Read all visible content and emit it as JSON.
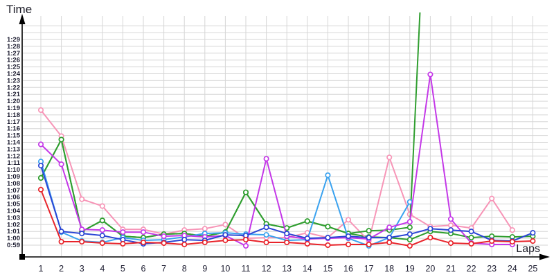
{
  "title": "Time",
  "xlabel": "Laps",
  "chart_data": {
    "type": "line",
    "title": "Time",
    "xlabel": "Laps",
    "ylabel": "Time",
    "x": [
      1,
      2,
      3,
      4,
      5,
      6,
      7,
      8,
      9,
      10,
      11,
      12,
      13,
      14,
      15,
      16,
      17,
      18,
      19,
      20,
      21,
      22,
      23,
      24,
      25
    ],
    "x_tick_labels": [
      "1",
      "2",
      "3",
      "4",
      "5",
      "6",
      "7",
      "8",
      "9",
      "10",
      "11",
      "12",
      "13",
      "14",
      "15",
      "16",
      "17",
      "18",
      "19",
      "20",
      "21",
      "22",
      "23",
      "24",
      "25"
    ],
    "y_unit": "m:ss (values stored as seconds)",
    "y_tick_start_seconds": 59,
    "y_tick_labels": [
      "0:59",
      "1:00",
      "1:01",
      "1:02",
      "1:03",
      "1:04",
      "1:05",
      "1:06",
      "1:07",
      "1:08",
      "1:09",
      "1:10",
      "1:11",
      "1:12",
      "1:13",
      "1:14",
      "1:15",
      "1:16",
      "1:17",
      "1:18",
      "1:19",
      "1:20",
      "1:21",
      "1:22",
      "1:23",
      "1:24",
      "1:25",
      "1:26",
      "1:27",
      "1:28",
      "1:29"
    ],
    "extra_unlabeled_gridline_seconds": [
      90,
      91
    ],
    "ylim_seconds": [
      59,
      89
    ],
    "grid": true,
    "legend": "none",
    "marker": "open-circle",
    "series": [
      {
        "name": "green-flat",
        "color": "#2f9e2f",
        "values": [
          68.8,
          74.4,
          61.0,
          62.6,
          60.3,
          60.1,
          60.6,
          60.7,
          60.3,
          60.9,
          66.7,
          62.1,
          61.5,
          62.5,
          61.7,
          60.7,
          60.2,
          60.1,
          59.8,
          61.0,
          60.7,
          60.1,
          60.3,
          60.2,
          60.3
        ]
      },
      {
        "name": "pink",
        "color": "#f795b7",
        "values": [
          78.7,
          74.9,
          65.7,
          64.7,
          61.3,
          61.3,
          60.6,
          61.2,
          61.4,
          62.0,
          60.0,
          60.1,
          60.1,
          60.8,
          60.1,
          62.7,
          59.6,
          71.8,
          63.5,
          61.7,
          61.9,
          61.5,
          65.8,
          61.2,
          null
        ]
      },
      {
        "name": "green-spiky",
        "color": "#2f9e2f",
        "values": [
          68.8,
          74.4,
          61.0,
          62.6,
          60.3,
          60.1,
          60.6,
          60.7,
          60.3,
          60.9,
          66.7,
          62.1,
          61.5,
          62.5,
          61.7,
          60.7,
          61.1,
          61.2,
          61.6,
          125,
          null,
          null,
          null,
          null,
          null
        ],
        "note": "lap 20 point is far above the visible axis; line exits the top of the plot"
      },
      {
        "name": "cyan",
        "color": "#3aa2ef",
        "values": [
          71.2,
          60.9,
          59.6,
          59.4,
          60.1,
          59.7,
          59.8,
          60.2,
          60.7,
          60.8,
          60.6,
          60.5,
          59.7,
          59.8,
          69.2,
          60.0,
          58.9,
          60.1,
          65.3,
          null,
          null,
          null,
          null,
          null,
          null
        ]
      },
      {
        "name": "magenta",
        "color": "#c438e8",
        "values": [
          73.7,
          70.8,
          61.3,
          61.2,
          60.9,
          60.9,
          60.3,
          60.4,
          60.2,
          60.4,
          58.9,
          71.6,
          60.3,
          59.9,
          60.0,
          60.1,
          59.9,
          61.6,
          62.4,
          83.9,
          62.8,
          59.3,
          59.1,
          59.1,
          null
        ]
      },
      {
        "name": "blue",
        "color": "#2a45d4",
        "values": [
          70.6,
          61.0,
          60.7,
          60.4,
          59.8,
          59.2,
          59.4,
          59.8,
          59.7,
          60.5,
          60.4,
          61.6,
          60.7,
          60.0,
          60.1,
          60.3,
          60.1,
          60.1,
          60.6,
          61.4,
          61.2,
          61.0,
          59.7,
          59.6,
          60.8
        ]
      },
      {
        "name": "red",
        "color": "#e8232a",
        "values": [
          67.1,
          59.5,
          59.5,
          59.3,
          59.2,
          59.4,
          59.3,
          59.1,
          59.4,
          59.7,
          59.8,
          59.4,
          59.4,
          59.2,
          59.0,
          59.1,
          59.1,
          59.4,
          58.9,
          60.1,
          59.3,
          59.2,
          59.6,
          59.5,
          59.6
        ]
      }
    ]
  },
  "style": {
    "grid_color": "#d6d6d6",
    "axis_color": "#000000",
    "tick_text_color": "#1c1c30",
    "background": "#ffffff"
  }
}
